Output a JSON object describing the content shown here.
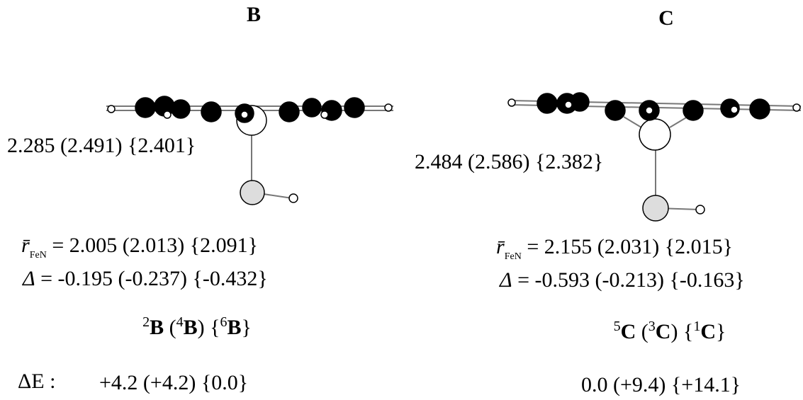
{
  "panels": [
    {
      "title": "B",
      "bond_label": "2.285 (2.491) {2.401}",
      "r_fen": {
        "symbol": "r̄",
        "subscript": "FeN",
        "value": " = 2.005 (2.013) {2.091}"
      },
      "delta": {
        "symbol": "Δ",
        "value": " = -0.195 (-0.237) {-0.432}"
      },
      "states": [
        {
          "text": "2",
          "style": "sup"
        },
        {
          "text": "B",
          "style": "bold"
        },
        {
          "text": " (",
          "style": "plain"
        },
        {
          "text": "4",
          "style": "sup"
        },
        {
          "text": "B",
          "style": "bold"
        },
        {
          "text": ") {",
          "style": "plain"
        },
        {
          "text": "6",
          "style": "sup"
        },
        {
          "text": "B",
          "style": "bold"
        },
        {
          "text": "}",
          "style": "plain"
        }
      ],
      "energy": "+4.2 (+4.2) {0.0}"
    },
    {
      "title": "C",
      "bond_label": "2.484 (2.586) {2.382}",
      "r_fen": {
        "symbol": "r̄",
        "subscript": "FeN",
        "value": " = 2.155 (2.031) {2.015}"
      },
      "delta": {
        "symbol": "Δ",
        "value": " = -0.593 (-0.213) {-0.163}"
      },
      "states": [
        {
          "text": "5",
          "style": "sup"
        },
        {
          "text": "C",
          "style": "bold"
        },
        {
          "text": " (",
          "style": "plain"
        },
        {
          "text": "3",
          "style": "sup"
        },
        {
          "text": "C",
          "style": "bold"
        },
        {
          "text": ") {",
          "style": "plain"
        },
        {
          "text": "1",
          "style": "sup"
        },
        {
          "text": "C",
          "style": "bold"
        },
        {
          "text": "}",
          "style": "plain"
        }
      ],
      "energy": "0.0 (+9.4) {+14.1}"
    }
  ],
  "energy_label": "ΔE :"
}
